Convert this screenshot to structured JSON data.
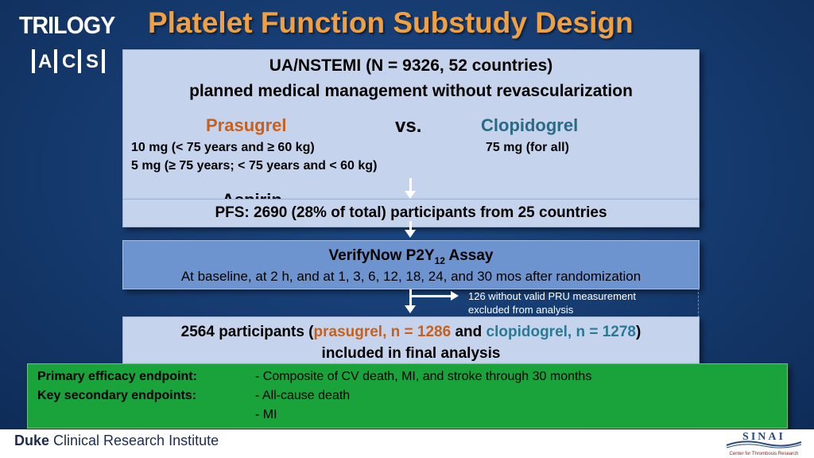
{
  "logo": {
    "line1": "TRILOGY",
    "letters": [
      "A",
      "C",
      "S"
    ]
  },
  "title": "Platelet Function Substudy Design",
  "main_box": {
    "line1": "UA/NSTEMI (N = 9326, 52 countries)",
    "line2": "planned medical management without revascularization",
    "drug_a": "Prasugrel",
    "vs": "vs.",
    "drug_b": "Clopidogrel",
    "dose_a1": "10 mg (< 75 years and ≥ 60 kg)",
    "dose_a2": "5 mg  (≥ 75 years; < 75 years and < 60 kg)",
    "dose_b": "75 mg (for all)",
    "aspirin_partial": "Aspirin"
  },
  "pfs_box": {
    "text": "PFS: 2690 (28% of total) participants from 25 countries"
  },
  "assay_box": {
    "title_main": "VerifyNow P2Y",
    "title_sub": "12",
    "title_end": " Assay",
    "detail": "At baseline, at 2 h, and at 1, 3, 6, 12, 18, 24, and 30 mos after randomization"
  },
  "excluded": {
    "line1": "126  without valid PRU measurement",
    "line2": "excluded from analysis"
  },
  "final_box": {
    "pre": "2564 participants (",
    "prasugrel": "prasugrel, n = 1286",
    "and": " and ",
    "clopidogrel": "clopidogrel, n = 1278",
    "post": ")",
    "line2": "included in final analysis"
  },
  "endpoints": {
    "primary_label": "Primary efficacy endpoint:",
    "primary_value": "- Composite of CV death, MI, and stroke through 30 months",
    "secondary_label": "Key secondary endpoints:",
    "secondary_value1": "- All-cause death",
    "secondary_value2": "- MI"
  },
  "footer": {
    "duke_bold": "Duke",
    "duke_rest": " Clinical Research Institute",
    "sinai_name": "SINAI",
    "sinai_sub": "Center for Thrombosis Research"
  },
  "colors": {
    "title": "#f0a040",
    "prasugrel": "#c8601c",
    "clopidogrel": "#2a6a85",
    "endpoint_box": "#1aa33a",
    "background": "#15386b"
  }
}
